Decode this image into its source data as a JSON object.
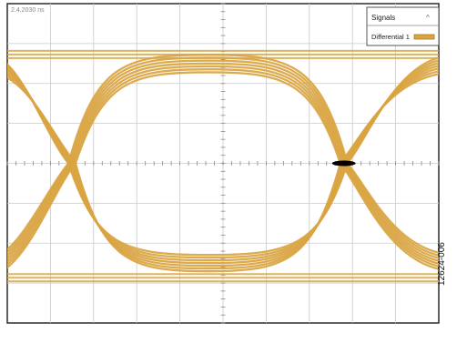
{
  "chart_data": {
    "type": "line",
    "title": "",
    "xlabel": "",
    "ylabel": "",
    "timestamp": "2.4.2030 ns",
    "x_divisions": 10,
    "y_divisions": 8,
    "grid": true,
    "legend_placement": "top-right",
    "legend": {
      "title": "Signals",
      "entries": [
        {
          "name": "Differential 1",
          "color": "#d9a441"
        }
      ]
    },
    "series": [
      {
        "name": "Differential 1",
        "kind": "eye-diagram",
        "unit_intervals_shown": 2,
        "crossing_points_x_div": [
          1.5,
          7.8
        ],
        "upper_level_div": 6.5,
        "lower_level_div": 1.5,
        "center_level_div": 4.0,
        "trace_count": 7
      }
    ]
  },
  "figure_id": "12624-006",
  "colors": {
    "trace": "#d9a441",
    "grid": "#c9c9c9",
    "frame": "#2b2b2b",
    "crossing_marker": "#000000"
  }
}
